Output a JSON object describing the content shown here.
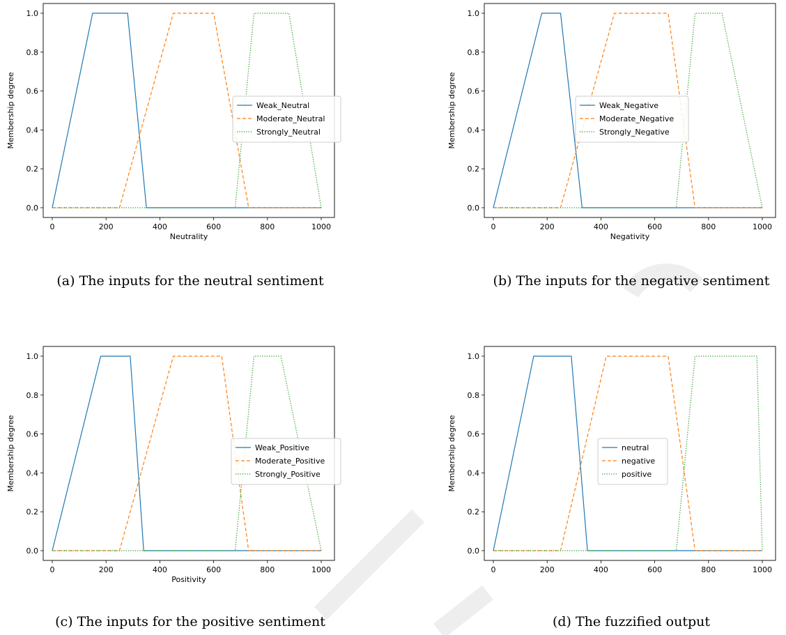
{
  "colors": {
    "series1": "#1f77b4",
    "series2": "#ff7f0e",
    "series3": "#2ca02c"
  },
  "chart_data": [
    {
      "type": "line",
      "caption": "(a) The inputs for the neutral sentiment",
      "xlabel": "Neutrality",
      "ylabel": "Membership degree",
      "xlim": [
        0,
        1000
      ],
      "ylim": [
        0,
        1
      ],
      "xticks": [
        0,
        200,
        400,
        600,
        800,
        1000
      ],
      "yticks": [
        0.0,
        0.2,
        0.4,
        0.6,
        0.8,
        1.0
      ],
      "legend": "center-right",
      "series": [
        {
          "name": "Weak_Neutral",
          "style": "solid",
          "x": [
            0,
            150,
            280,
            350,
            1000
          ],
          "y": [
            0,
            1,
            1,
            0,
            0
          ]
        },
        {
          "name": "Moderate_Neutral",
          "style": "dashed",
          "x": [
            0,
            250,
            450,
            600,
            730,
            1000
          ],
          "y": [
            0,
            0,
            1,
            1,
            0,
            0
          ]
        },
        {
          "name": "Strongly_Neutral",
          "style": "dotted",
          "x": [
            0,
            680,
            750,
            880,
            1000
          ],
          "y": [
            0,
            0,
            1,
            1,
            0
          ]
        }
      ]
    },
    {
      "type": "line",
      "caption": "(b) The inputs for the negative sentiment",
      "xlabel": "Negativity",
      "ylabel": "Membership degree",
      "xlim": [
        0,
        1000
      ],
      "ylim": [
        0,
        1
      ],
      "xticks": [
        0,
        200,
        400,
        600,
        800,
        1000
      ],
      "yticks": [
        0.0,
        0.2,
        0.4,
        0.6,
        0.8,
        1.0
      ],
      "legend": "center-right",
      "series": [
        {
          "name": "Weak_Negative",
          "style": "solid",
          "x": [
            0,
            180,
            250,
            330,
            1000
          ],
          "y": [
            0,
            1,
            1,
            0,
            0
          ]
        },
        {
          "name": "Moderate_Negative",
          "style": "dashed",
          "x": [
            0,
            250,
            450,
            650,
            750,
            1000
          ],
          "y": [
            0,
            0,
            1,
            1,
            0,
            0
          ]
        },
        {
          "name": "Strongly_Negative",
          "style": "dotted",
          "x": [
            0,
            680,
            750,
            850,
            1000
          ],
          "y": [
            0,
            0,
            1,
            1,
            0
          ]
        }
      ]
    },
    {
      "type": "line",
      "caption": "(c) The inputs for the positive sentiment",
      "xlabel": "Positivity",
      "ylabel": "Membership degree",
      "xlim": [
        0,
        1000
      ],
      "ylim": [
        0,
        1
      ],
      "xticks": [
        0,
        200,
        400,
        600,
        800,
        1000
      ],
      "yticks": [
        0.0,
        0.2,
        0.4,
        0.6,
        0.8,
        1.0
      ],
      "legend": "center-right",
      "series": [
        {
          "name": "Weak_Positive",
          "style": "solid",
          "x": [
            0,
            180,
            290,
            340,
            1000
          ],
          "y": [
            0,
            1,
            1,
            0,
            0
          ]
        },
        {
          "name": "Moderate_Positive",
          "style": "dashed",
          "x": [
            0,
            250,
            450,
            630,
            730,
            1000
          ],
          "y": [
            0,
            0,
            1,
            1,
            0,
            0
          ]
        },
        {
          "name": "Strongly_Positive",
          "style": "dotted",
          "x": [
            0,
            680,
            750,
            850,
            1000
          ],
          "y": [
            0,
            0,
            1,
            1,
            0
          ]
        }
      ]
    },
    {
      "type": "line",
      "caption": "(d) The fuzzified output",
      "xlabel": "",
      "ylabel": "Membership degree",
      "xlim": [
        0,
        1000
      ],
      "ylim": [
        0,
        1
      ],
      "xticks": [
        0,
        200,
        400,
        600,
        800,
        1000
      ],
      "yticks": [
        0.0,
        0.2,
        0.4,
        0.6,
        0.8,
        1.0
      ],
      "legend": "center",
      "series": [
        {
          "name": "neutral",
          "style": "solid",
          "x": [
            0,
            150,
            290,
            350,
            1000
          ],
          "y": [
            0,
            1,
            1,
            0,
            0
          ]
        },
        {
          "name": "negative",
          "style": "dashed",
          "x": [
            0,
            250,
            420,
            650,
            750,
            1000
          ],
          "y": [
            0,
            0,
            1,
            1,
            0,
            0
          ]
        },
        {
          "name": "positive",
          "style": "dotted",
          "x": [
            0,
            680,
            750,
            980,
            1000
          ],
          "y": [
            0,
            0,
            1,
            1,
            0
          ]
        }
      ]
    }
  ]
}
